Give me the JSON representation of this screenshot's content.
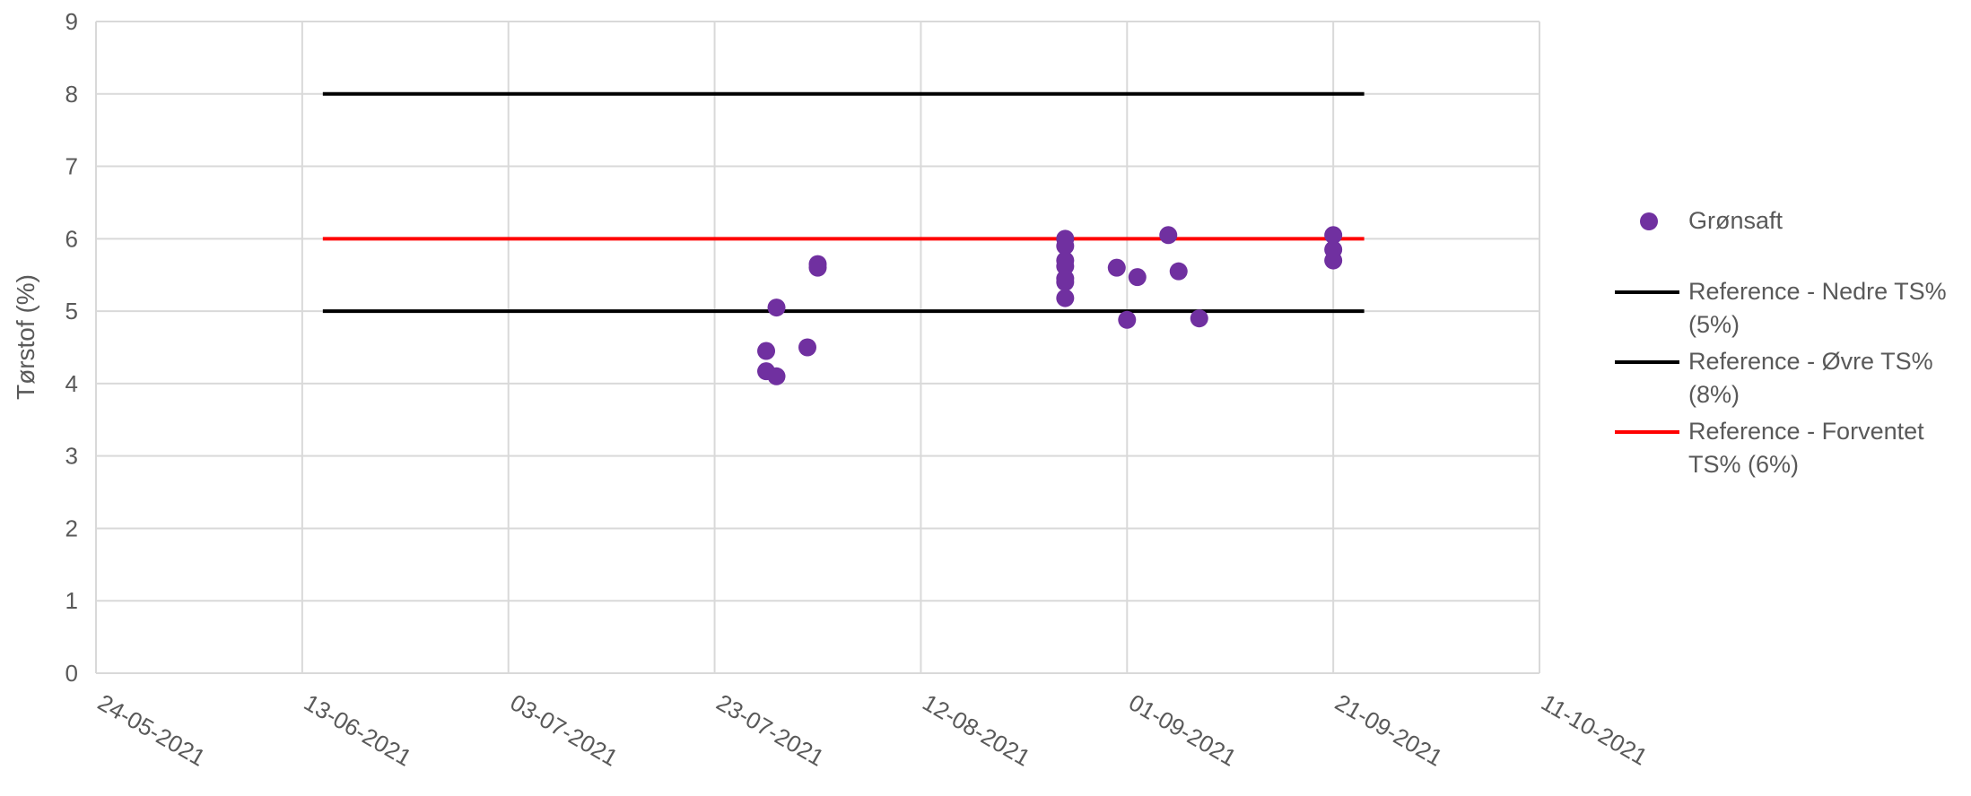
{
  "chart_data": {
    "type": "scatter",
    "ylabel": "Tørstof (%)",
    "xlabel": "",
    "ylim": [
      0,
      9
    ],
    "yticks": [
      "0",
      "1",
      "2",
      "3",
      "4",
      "5",
      "6",
      "7",
      "8",
      "9"
    ],
    "xlim": [
      "2021-05-24",
      "2021-10-11"
    ],
    "xticks": [
      "24-05-2021",
      "13-06-2021",
      "03-07-2021",
      "23-07-2021",
      "12-08-2021",
      "01-09-2021",
      "21-09-2021",
      "11-10-2021"
    ],
    "grid": true,
    "legend_position": "right",
    "series": [
      {
        "name": "Grønsaft",
        "kind": "scatter",
        "color": "#7030A0",
        "points": [
          {
            "x": "2021-07-28",
            "y": 4.45
          },
          {
            "x": "2021-07-28",
            "y": 4.17
          },
          {
            "x": "2021-07-29",
            "y": 5.05
          },
          {
            "x": "2021-07-29",
            "y": 4.1
          },
          {
            "x": "2021-08-01",
            "y": 4.5
          },
          {
            "x": "2021-08-02",
            "y": 5.6
          },
          {
            "x": "2021-08-02",
            "y": 5.65
          },
          {
            "x": "2021-08-26",
            "y": 6.0
          },
          {
            "x": "2021-08-26",
            "y": 5.9
          },
          {
            "x": "2021-08-26",
            "y": 5.7
          },
          {
            "x": "2021-08-26",
            "y": 5.62
          },
          {
            "x": "2021-08-26",
            "y": 5.45
          },
          {
            "x": "2021-08-26",
            "y": 5.4
          },
          {
            "x": "2021-08-26",
            "y": 5.18
          },
          {
            "x": "2021-08-31",
            "y": 5.6
          },
          {
            "x": "2021-09-01",
            "y": 4.88
          },
          {
            "x": "2021-09-02",
            "y": 5.47
          },
          {
            "x": "2021-09-05",
            "y": 6.05
          },
          {
            "x": "2021-09-06",
            "y": 5.55
          },
          {
            "x": "2021-09-08",
            "y": 4.9
          },
          {
            "x": "2021-09-21",
            "y": 6.05
          },
          {
            "x": "2021-09-21",
            "y": 5.85
          },
          {
            "x": "2021-09-21",
            "y": 5.7
          }
        ]
      },
      {
        "name": "Reference - Nedre TS% (5%)",
        "kind": "line",
        "color": "#000000",
        "points": [
          {
            "x": "2021-06-15",
            "y": 5
          },
          {
            "x": "2021-09-24",
            "y": 5
          }
        ]
      },
      {
        "name": "Reference - Øvre TS% (8%)",
        "kind": "line",
        "color": "#000000",
        "points": [
          {
            "x": "2021-06-15",
            "y": 8
          },
          {
            "x": "2021-09-24",
            "y": 8
          }
        ]
      },
      {
        "name": "Reference - Forventet TS% (6%)",
        "kind": "line",
        "color": "#FF0000",
        "points": [
          {
            "x": "2021-06-15",
            "y": 6
          },
          {
            "x": "2021-09-24",
            "y": 6
          }
        ]
      }
    ]
  },
  "legend": {
    "marker_label": "Grønsaft",
    "lines": [
      {
        "label": "Reference - Nedre TS% (5%)",
        "color": "#000000"
      },
      {
        "label": "Reference - Øvre TS% (8%)",
        "color": "#000000"
      },
      {
        "label": "Reference - Forventet TS% (6%)",
        "color": "#FF0000"
      }
    ]
  }
}
